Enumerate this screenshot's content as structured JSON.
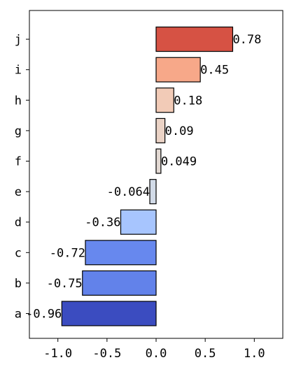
{
  "chart_data": {
    "type": "bar",
    "orientation": "horizontal",
    "categories": [
      "a",
      "b",
      "c",
      "d",
      "e",
      "f",
      "g",
      "h",
      "i",
      "j"
    ],
    "values": [
      -0.96,
      -0.75,
      -0.72,
      -0.36,
      -0.064,
      0.049,
      0.09,
      0.18,
      0.45,
      0.78
    ],
    "value_labels": [
      "-0.96",
      "-0.75",
      "-0.72",
      "-0.36",
      "-0.064",
      "0.049",
      "0.09",
      "0.18",
      "0.45",
      "0.78"
    ],
    "colors": [
      "#3b4cc0",
      "#6282ea",
      "#6788ee",
      "#a7c5fe",
      "#d2dbe8",
      "#e3d9d3",
      "#ebd3c6",
      "#f2cbb7",
      "#f7a889",
      "#d65244"
    ],
    "xlim": [
      -1.29,
      1.29
    ],
    "xticks": [
      -1.0,
      -0.5,
      0.0,
      0.5,
      1.0
    ],
    "xtick_labels": [
      "-1.0",
      "-0.5",
      "0.0",
      "0.5",
      "1.0"
    ],
    "title": "",
    "xlabel": "",
    "ylabel": "",
    "grid": false,
    "legend": "none"
  }
}
